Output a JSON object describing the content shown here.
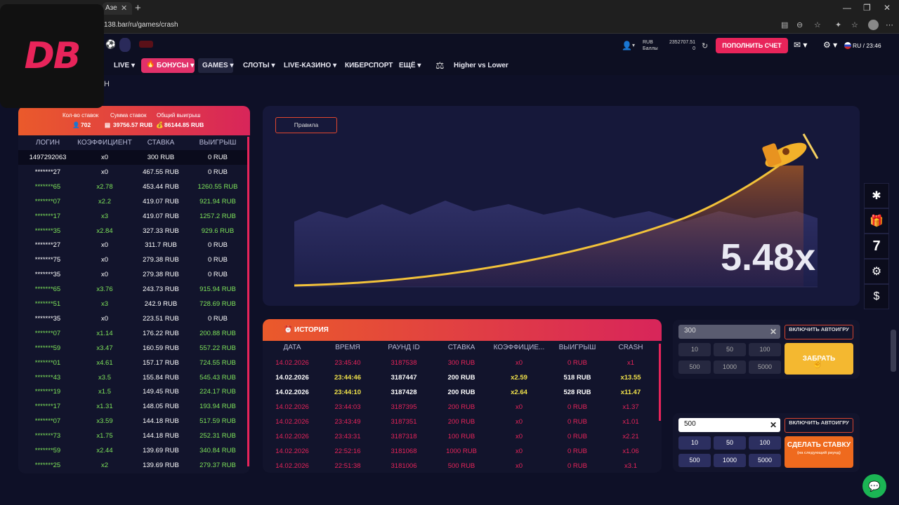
{
  "browser": {
    "tab_title": "Азе",
    "url": "138.bar/ru/games/crash"
  },
  "logo_text": "DB",
  "header": {
    "currency": "RUB",
    "balance": "2352707.51",
    "points_label": "Баллы",
    "points": "0",
    "topup_label": "ПОПОЛНИТЬ СЧЕТ",
    "lang_time": "RU / 23:46"
  },
  "nav": {
    "live": "LIVE",
    "bonus": "БОНУСЫ",
    "games": "GAMES",
    "slots": "СЛОТЫ",
    "live_casino": "LIVE-КАЗИНО",
    "esports": "КИБЕРСПОРТ",
    "more": "ЕЩЁ",
    "higher_lower": "Higher vs Lower"
  },
  "page_title_fragment": "Н",
  "bets_summary": {
    "count_label": "Кол-во ставок",
    "count": "702",
    "sum_label": "Сумма ставок",
    "sum": "39756.57 RUB",
    "win_label": "Общий выигрыш",
    "win": "86144.85 RUB"
  },
  "bets_columns": [
    "ЛОГИН",
    "КОЭФФИЦИЕНТ",
    "СТАВКА",
    "ВЫИГРЫШ"
  ],
  "bets": [
    {
      "login": "1497292063",
      "coef": "x0",
      "bet": "300 RUB",
      "win": "0 RUB",
      "win_flag": false,
      "highlight": true
    },
    {
      "login": "*******27",
      "coef": "x0",
      "bet": "467.55 RUB",
      "win": "0 RUB",
      "win_flag": false
    },
    {
      "login": "*******65",
      "coef": "x2.78",
      "bet": "453.44 RUB",
      "win": "1260.55 RUB",
      "win_flag": true
    },
    {
      "login": "*******07",
      "coef": "x2.2",
      "bet": "419.07 RUB",
      "win": "921.94 RUB",
      "win_flag": true
    },
    {
      "login": "*******17",
      "coef": "x3",
      "bet": "419.07 RUB",
      "win": "1257.2 RUB",
      "win_flag": true
    },
    {
      "login": "*******35",
      "coef": "x2.84",
      "bet": "327.33 RUB",
      "win": "929.6 RUB",
      "win_flag": true
    },
    {
      "login": "*******27",
      "coef": "x0",
      "bet": "311.7 RUB",
      "win": "0 RUB",
      "win_flag": false
    },
    {
      "login": "*******75",
      "coef": "x0",
      "bet": "279.38 RUB",
      "win": "0 RUB",
      "win_flag": false
    },
    {
      "login": "*******35",
      "coef": "x0",
      "bet": "279.38 RUB",
      "win": "0 RUB",
      "win_flag": false
    },
    {
      "login": "*******65",
      "coef": "x3.76",
      "bet": "243.73 RUB",
      "win": "915.94 RUB",
      "win_flag": true
    },
    {
      "login": "*******51",
      "coef": "x3",
      "bet": "242.9 RUB",
      "win": "728.69 RUB",
      "win_flag": true
    },
    {
      "login": "*******35",
      "coef": "x0",
      "bet": "223.51 RUB",
      "win": "0 RUB",
      "win_flag": false
    },
    {
      "login": "*******07",
      "coef": "x1.14",
      "bet": "176.22 RUB",
      "win": "200.88 RUB",
      "win_flag": true
    },
    {
      "login": "*******59",
      "coef": "x3.47",
      "bet": "160.59 RUB",
      "win": "557.22 RUB",
      "win_flag": true
    },
    {
      "login": "*******01",
      "coef": "x4.61",
      "bet": "157.17 RUB",
      "win": "724.55 RUB",
      "win_flag": true
    },
    {
      "login": "*******43",
      "coef": "x3.5",
      "bet": "155.84 RUB",
      "win": "545.43 RUB",
      "win_flag": true
    },
    {
      "login": "*******19",
      "coef": "x1.5",
      "bet": "149.45 RUB",
      "win": "224.17 RUB",
      "win_flag": true
    },
    {
      "login": "*******17",
      "coef": "x1.31",
      "bet": "148.05 RUB",
      "win": "193.94 RUB",
      "win_flag": true
    },
    {
      "login": "*******07",
      "coef": "x3.59",
      "bet": "144.18 RUB",
      "win": "517.59 RUB",
      "win_flag": true
    },
    {
      "login": "*******73",
      "coef": "x1.75",
      "bet": "144.18 RUB",
      "win": "252.31 RUB",
      "win_flag": true
    },
    {
      "login": "*******59",
      "coef": "x2.44",
      "bet": "139.69 RUB",
      "win": "340.84 RUB",
      "win_flag": true
    },
    {
      "login": "*******25",
      "coef": "x2",
      "bet": "139.69 RUB",
      "win": "279.37 RUB",
      "win_flag": true
    }
  ],
  "game": {
    "rules_label": "Правила",
    "multiplier": "5.48x"
  },
  "history": {
    "title": "ИСТОРИЯ",
    "columns": [
      "ДАТА",
      "ВРЕМЯ",
      "РАУНД ID",
      "СТАВКА",
      "КОЭФФИЦИЕ...",
      "ВЫИГРЫШ",
      "CRASH"
    ],
    "rows": [
      {
        "date": "14.02.2026",
        "time": "23:45:40",
        "round": "3187538",
        "bet": "300 RUB",
        "coef": "x0",
        "win": "0 RUB",
        "crash": "x1",
        "won": false
      },
      {
        "date": "14.02.2026",
        "time": "23:44:46",
        "round": "3187447",
        "bet": "200 RUB",
        "coef": "x2.59",
        "win": "518 RUB",
        "crash": "x13.55",
        "won": true
      },
      {
        "date": "14.02.2026",
        "time": "23:44:10",
        "round": "3187428",
        "bet": "200 RUB",
        "coef": "x2.64",
        "win": "528 RUB",
        "crash": "x11.47",
        "won": true
      },
      {
        "date": "14.02.2026",
        "time": "23:44:03",
        "round": "3187395",
        "bet": "200 RUB",
        "coef": "x0",
        "win": "0 RUB",
        "crash": "x1.37",
        "won": false
      },
      {
        "date": "14.02.2026",
        "time": "23:43:49",
        "round": "3187351",
        "bet": "200 RUB",
        "coef": "x0",
        "win": "0 RUB",
        "crash": "x1.01",
        "won": false
      },
      {
        "date": "14.02.2026",
        "time": "23:43:31",
        "round": "3187318",
        "bet": "100 RUB",
        "coef": "x0",
        "win": "0 RUB",
        "crash": "x2.21",
        "won": false
      },
      {
        "date": "14.02.2026",
        "time": "22:52:16",
        "round": "3181068",
        "bet": "1000 RUB",
        "coef": "x0",
        "win": "0 RUB",
        "crash": "x1.06",
        "won": false
      },
      {
        "date": "14.02.2026",
        "time": "22:51:38",
        "round": "3181006",
        "bet": "500 RUB",
        "coef": "x0",
        "win": "0 RUB",
        "crash": "x3.1",
        "won": false
      }
    ]
  },
  "bet1": {
    "amount": "300",
    "quick": [
      "10",
      "50",
      "100",
      "500",
      "1000",
      "5000"
    ],
    "auto_label": "ВКЛЮЧИТЬ АВТОИГРУ",
    "action_label": "ЗАБРАТЬ"
  },
  "bet2": {
    "amount": "500",
    "quick": [
      "10",
      "50",
      "100",
      "500",
      "1000",
      "5000"
    ],
    "auto_label": "ВКЛЮЧИТЬ АВТОИГРУ",
    "action_label": "СДЕЛАТЬ СТАВКУ",
    "action_sub": "(на следующий раунд)"
  },
  "side_widgets": {
    "seven": "7"
  },
  "colors": {
    "accent": "#e8245a",
    "orange": "#ea5a2b",
    "win_green": "#7ee35a",
    "lose_red": "#e8245a",
    "cashout_yellow": "#f4b830",
    "bet_orange": "#ef6a1e"
  }
}
